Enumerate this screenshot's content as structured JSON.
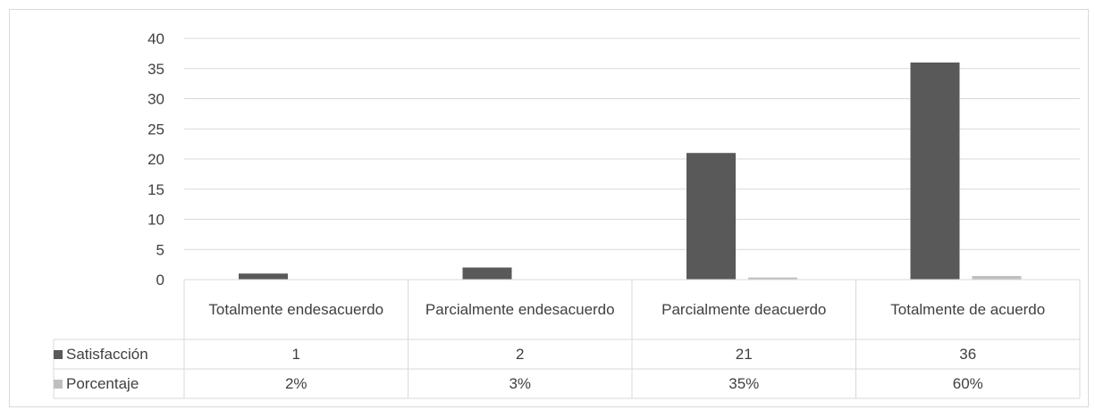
{
  "chart_data": {
    "type": "bar",
    "categories": [
      [
        "Totalmente en",
        "desacuerdo"
      ],
      [
        "Parcialmente en",
        "desacuerdo"
      ],
      [
        "Parcialmente de",
        "acuerdo"
      ],
      [
        "Totalmente de acuerdo"
      ]
    ],
    "series": [
      {
        "name": "Satisfacción",
        "color": "#595959",
        "values": [
          1,
          2,
          21,
          36
        ],
        "table_values": [
          "1",
          "2",
          "21",
          "36"
        ]
      },
      {
        "name": "Porcentaje",
        "color": "#bfbfbf",
        "values": [
          0.02,
          0.03,
          0.35,
          0.6
        ],
        "table_values": [
          "2%",
          "3%",
          "35%",
          "60%"
        ]
      }
    ],
    "yticks": [
      "0",
      "5",
      "10",
      "15",
      "20",
      "25",
      "30",
      "35",
      "40"
    ],
    "ylim": [
      0,
      40
    ],
    "grid": true,
    "legend": "data-table"
  }
}
